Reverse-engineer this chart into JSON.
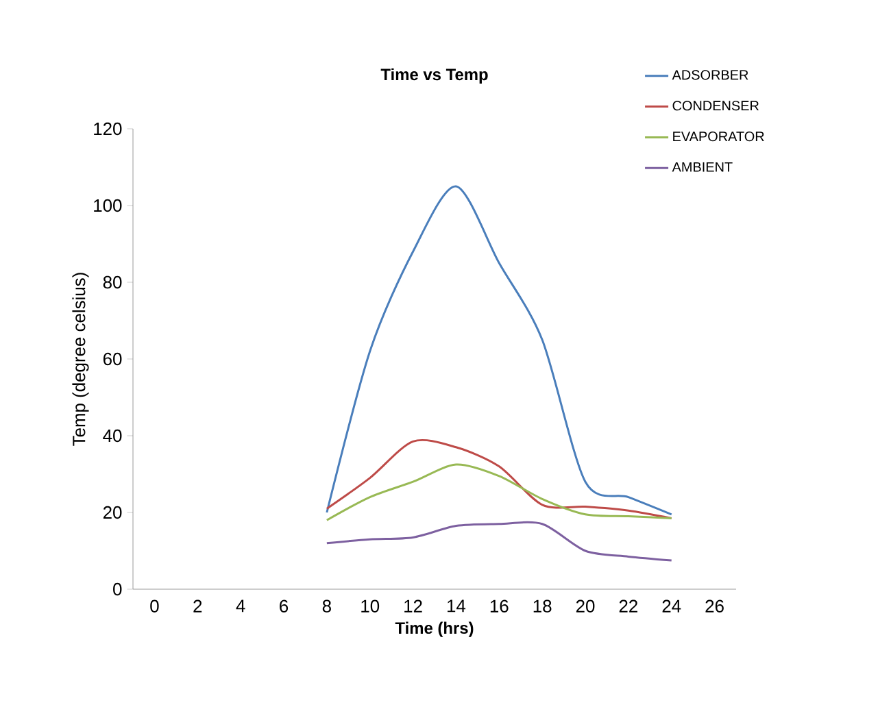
{
  "chart_data": {
    "type": "line",
    "title": "Time vs Temp",
    "xlabel": "Time (hrs)",
    "ylabel": "Temp (degree celsius)",
    "x": [
      8,
      10,
      12,
      14,
      16,
      18,
      20,
      22,
      24
    ],
    "series": [
      {
        "name": "ADSORBER",
        "color": "#4a7ebb",
        "values": [
          20,
          62,
          88,
          105,
          85,
          65,
          28,
          24,
          19.5
        ]
      },
      {
        "name": "CONDENSER",
        "color": "#be4b48",
        "values": [
          21,
          29,
          38.5,
          37,
          32,
          22,
          21.5,
          20.5,
          18.5
        ]
      },
      {
        "name": "EVAPORATOR",
        "color": "#98b954",
        "values": [
          18,
          24,
          28,
          32.5,
          29.5,
          23.5,
          19.5,
          19,
          18.5
        ]
      },
      {
        "name": "AMBIENT",
        "color": "#7d60a0",
        "values": [
          12,
          13,
          13.5,
          16.5,
          17,
          17,
          10,
          8.5,
          7.5
        ]
      }
    ],
    "xlim": [
      -1,
      27
    ],
    "xticks": [
      0,
      2,
      4,
      6,
      8,
      10,
      12,
      14,
      16,
      18,
      20,
      22,
      24,
      26
    ],
    "ylim": [
      0,
      120
    ],
    "yticks": [
      0,
      20,
      40,
      60,
      80,
      100,
      120
    ],
    "grid": false,
    "legend": "top right",
    "marker": "none",
    "line_style": "solid"
  }
}
